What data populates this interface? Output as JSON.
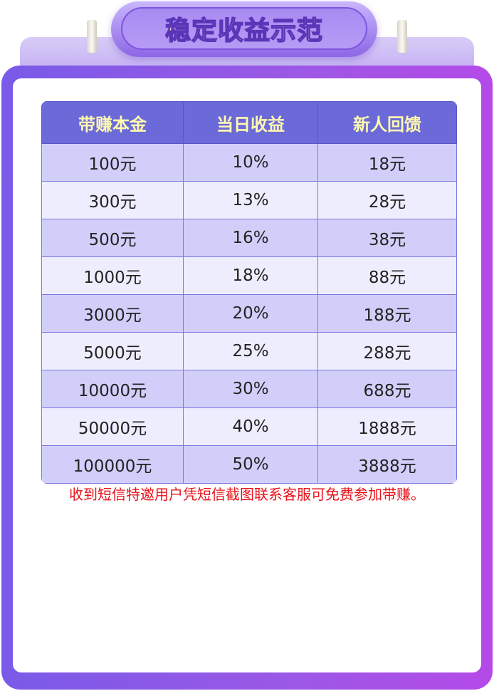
{
  "title": "稳定收益示范",
  "table": {
    "headers": [
      "带赚本金",
      "当日收益",
      "新人回馈"
    ],
    "rows": [
      [
        "100元",
        "10%",
        "18元"
      ],
      [
        "300元",
        "13%",
        "28元"
      ],
      [
        "500元",
        "16%",
        "38元"
      ],
      [
        "1000元",
        "18%",
        "88元"
      ],
      [
        "3000元",
        "20%",
        "188元"
      ],
      [
        "5000元",
        "25%",
        "288元"
      ],
      [
        "10000元",
        "30%",
        "688元"
      ],
      [
        "50000元",
        "40%",
        "1888元"
      ],
      [
        "100000元",
        "50%",
        "3888元"
      ]
    ]
  },
  "note": "收到短信特邀用户凭短信截图联系客服可免费参加带赚。",
  "colors": {
    "header": "#6b6ad8",
    "header_text": "#fff9b0",
    "row_dark": "#d1cffa",
    "row_light": "#eeedfd",
    "note": "#e8121a",
    "frame": "#8a5ae8"
  }
}
